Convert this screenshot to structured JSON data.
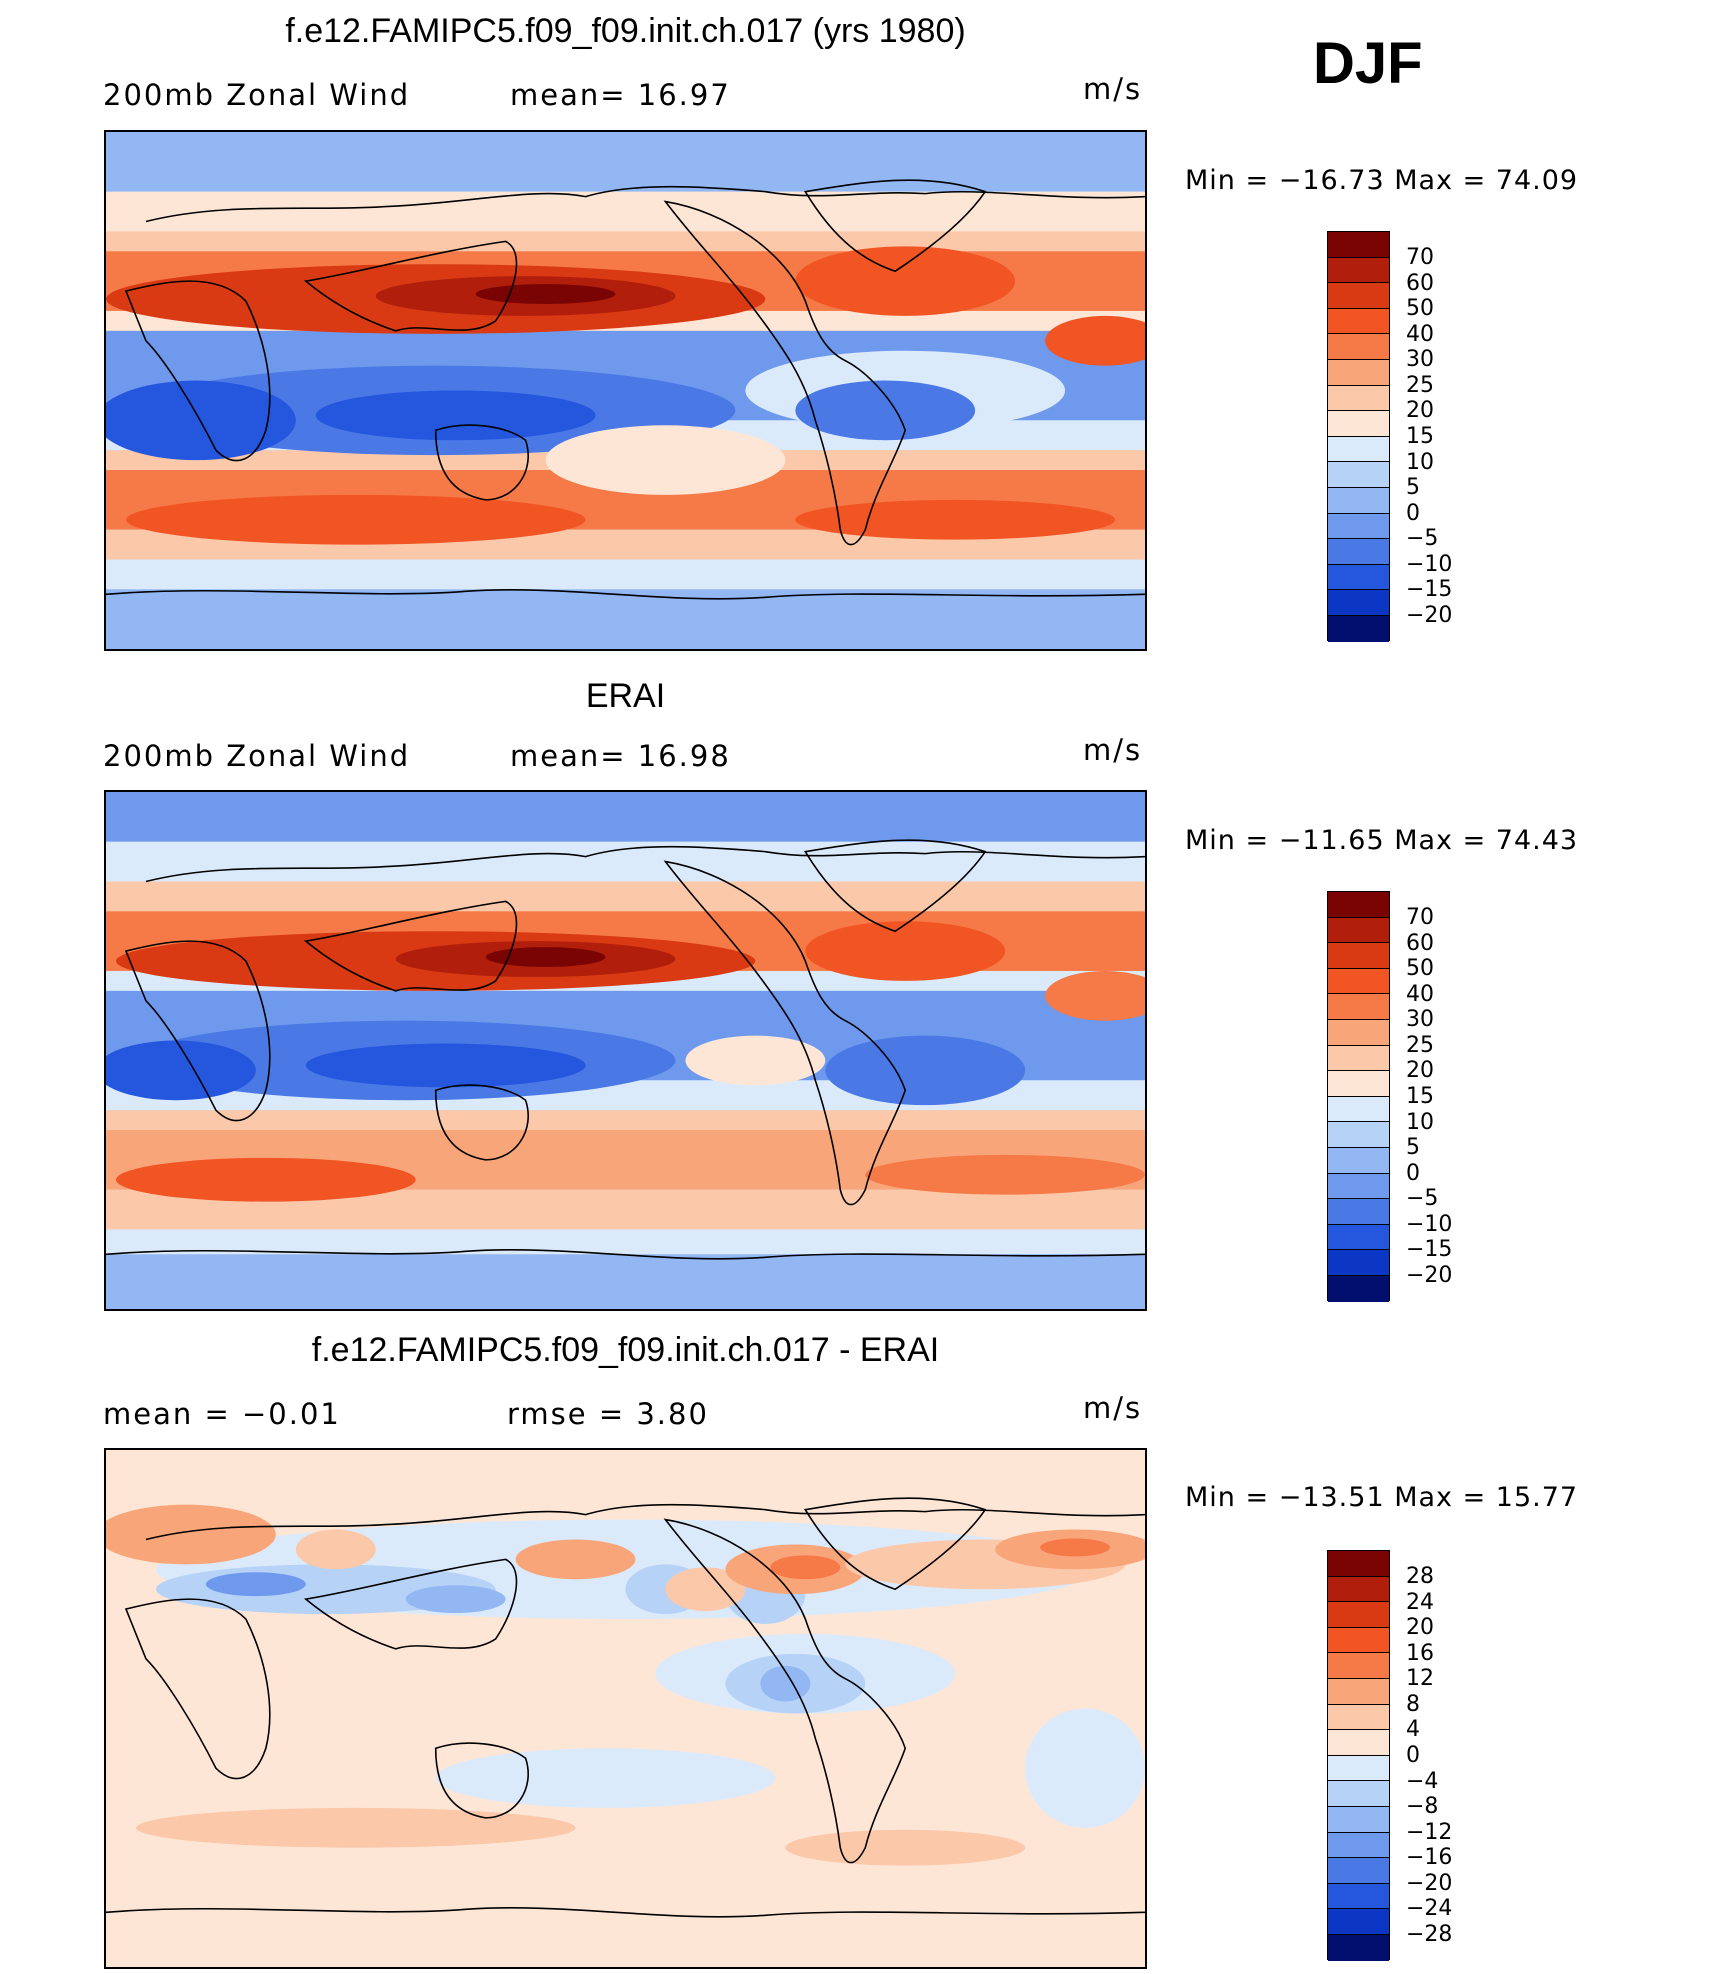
{
  "season": "DJF",
  "panels": [
    {
      "title": "f.e12.FAMIPC5.f09_f09.init.ch.017 (yrs 1980)",
      "left_label": "200mb  Zonal  Wind",
      "center_label": "mean=   16.97",
      "units": "m/s",
      "minmax": "Min  =  −16.73  Max  =    74.09",
      "stats": {
        "min": -16.73,
        "max": 74.09,
        "mean": 16.97
      },
      "variable": "200mb Zonal Wind"
    },
    {
      "title": "ERAI",
      "left_label": "200mb  Zonal  Wind",
      "center_label": "mean=   16.98",
      "units": "m/s",
      "minmax": "Min  =  −11.65  Max  =    74.43",
      "stats": {
        "min": -11.65,
        "max": 74.43,
        "mean": 16.98
      },
      "variable": "200mb Zonal Wind"
    },
    {
      "title": "f.e12.FAMIPC5.f09_f09.init.ch.017 - ERAI",
      "left_label": "mean  =    −0.01",
      "center_label": "rmse  =     3.80",
      "units": "m/s",
      "minmax": "Min  =  −13.51  Max  =    15.77",
      "stats": {
        "min": -13.51,
        "max": 15.77,
        "mean": -0.01,
        "rmse": 3.8
      }
    }
  ],
  "colorbars": {
    "field": {
      "labels": [
        "70",
        "60",
        "50",
        "40",
        "30",
        "25",
        "20",
        "15",
        "10",
        "5",
        "0",
        "−5",
        "−10",
        "−15",
        "−20"
      ],
      "colors": [
        "#7a0403",
        "#b11f0c",
        "#d93a14",
        "#f15524",
        "#f67a47",
        "#f9a57a",
        "#fbc8aa",
        "#fde6d6",
        "#dbeafb",
        "#b7d2f7",
        "#92b7f2",
        "#6e99ec",
        "#4a79e6",
        "#2456de",
        "#0c37c4",
        "#06229a",
        "#020f6e"
      ]
    },
    "diff": {
      "labels": [
        "28",
        "24",
        "20",
        "16",
        "12",
        "8",
        "4",
        "0",
        "−4",
        "−8",
        "−12",
        "−16",
        "−20",
        "−24",
        "−28"
      ],
      "colors": [
        "#7a0403",
        "#b11f0c",
        "#d93a14",
        "#f15524",
        "#f67a47",
        "#f9a57a",
        "#fbc8aa",
        "#fde6d6",
        "#dbeafb",
        "#b7d2f7",
        "#92b7f2",
        "#6e99ec",
        "#4a79e6",
        "#2456de",
        "#0c37c4",
        "#06229a",
        "#020f6e"
      ]
    }
  }
}
